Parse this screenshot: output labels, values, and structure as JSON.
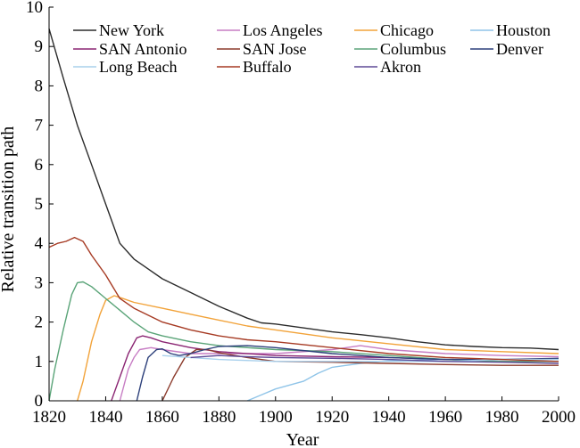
{
  "chart_data": {
    "type": "line",
    "xlabel": "Year",
    "ylabel": "Relative transition path",
    "xlim": [
      1820,
      2000
    ],
    "ylim": [
      0,
      10
    ],
    "x_ticks": [
      1820,
      1840,
      1860,
      1880,
      1900,
      1920,
      1940,
      1960,
      1980,
      2000
    ],
    "y_ticks": [
      0,
      1,
      2,
      3,
      4,
      5,
      6,
      7,
      8,
      9,
      10
    ],
    "grid": false,
    "legend_position": "top",
    "series": [
      {
        "name": "New York",
        "color": "#2b2b2b",
        "points": [
          [
            1820,
            9.45
          ],
          [
            1825,
            8.2
          ],
          [
            1830,
            7.0
          ],
          [
            1835,
            6.0
          ],
          [
            1840,
            5.0
          ],
          [
            1845,
            4.0
          ],
          [
            1850,
            3.6
          ],
          [
            1855,
            3.35
          ],
          [
            1860,
            3.1
          ],
          [
            1870,
            2.75
          ],
          [
            1880,
            2.4
          ],
          [
            1890,
            2.1
          ],
          [
            1895,
            1.98
          ],
          [
            1900,
            1.95
          ],
          [
            1910,
            1.85
          ],
          [
            1920,
            1.75
          ],
          [
            1930,
            1.68
          ],
          [
            1940,
            1.6
          ],
          [
            1950,
            1.5
          ],
          [
            1960,
            1.42
          ],
          [
            1970,
            1.38
          ],
          [
            1980,
            1.35
          ],
          [
            1990,
            1.34
          ],
          [
            2000,
            1.3
          ]
        ]
      },
      {
        "name": "Los Angeles",
        "color": "#c77dc4",
        "points": [
          [
            1845,
            0.0
          ],
          [
            1848,
            0.8
          ],
          [
            1850,
            1.1
          ],
          [
            1852,
            1.3
          ],
          [
            1856,
            1.35
          ],
          [
            1860,
            1.3
          ],
          [
            1870,
            1.2
          ],
          [
            1880,
            1.2
          ],
          [
            1900,
            1.2
          ],
          [
            1920,
            1.3
          ],
          [
            1930,
            1.4
          ],
          [
            1940,
            1.3
          ],
          [
            1960,
            1.2
          ],
          [
            1980,
            1.15
          ],
          [
            2000,
            1.12
          ]
        ]
      },
      {
        "name": "Chicago",
        "color": "#f2a33a",
        "points": [
          [
            1830,
            0.0
          ],
          [
            1832,
            0.5
          ],
          [
            1835,
            1.5
          ],
          [
            1838,
            2.2
          ],
          [
            1840,
            2.55
          ],
          [
            1843,
            2.67
          ],
          [
            1846,
            2.6
          ],
          [
            1850,
            2.5
          ],
          [
            1860,
            2.35
          ],
          [
            1870,
            2.2
          ],
          [
            1880,
            2.05
          ],
          [
            1890,
            1.9
          ],
          [
            1900,
            1.8
          ],
          [
            1920,
            1.6
          ],
          [
            1940,
            1.45
          ],
          [
            1960,
            1.3
          ],
          [
            1980,
            1.25
          ],
          [
            2000,
            1.2
          ]
        ]
      },
      {
        "name": "Houston",
        "color": "#8fc4e8",
        "points": [
          [
            1890,
            0.0
          ],
          [
            1895,
            0.15
          ],
          [
            1900,
            0.3
          ],
          [
            1910,
            0.5
          ],
          [
            1915,
            0.7
          ],
          [
            1920,
            0.85
          ],
          [
            1930,
            0.95
          ],
          [
            1940,
            1.02
          ],
          [
            1960,
            1.05
          ],
          [
            1980,
            1.05
          ],
          [
            2000,
            1.05
          ]
        ]
      },
      {
        "name": "SAN Antonio",
        "color": "#8a2472",
        "points": [
          [
            1842,
            0.0
          ],
          [
            1845,
            0.6
          ],
          [
            1848,
            1.2
          ],
          [
            1851,
            1.6
          ],
          [
            1853,
            1.65
          ],
          [
            1856,
            1.6
          ],
          [
            1860,
            1.5
          ],
          [
            1870,
            1.35
          ],
          [
            1880,
            1.25
          ],
          [
            1900,
            1.15
          ],
          [
            1920,
            1.12
          ],
          [
            1940,
            1.1
          ],
          [
            1960,
            1.05
          ],
          [
            1980,
            1.0
          ],
          [
            2000,
            1.0
          ]
        ]
      },
      {
        "name": "SAN Jose",
        "color": "#8b3a2b",
        "points": [
          [
            1860,
            0.0
          ],
          [
            1864,
            0.6
          ],
          [
            1868,
            1.1
          ],
          [
            1872,
            1.3
          ],
          [
            1876,
            1.3
          ],
          [
            1880,
            1.22
          ],
          [
            1890,
            1.1
          ],
          [
            1900,
            1.0
          ],
          [
            1920,
            0.98
          ],
          [
            1940,
            0.95
          ],
          [
            1960,
            0.92
          ],
          [
            1980,
            0.9
          ],
          [
            2000,
            0.9
          ]
        ]
      },
      {
        "name": "Columbus",
        "color": "#5aa478",
        "points": [
          [
            1820,
            0.0
          ],
          [
            1822,
            0.8
          ],
          [
            1825,
            1.8
          ],
          [
            1828,
            2.7
          ],
          [
            1830,
            3.0
          ],
          [
            1832,
            3.02
          ],
          [
            1835,
            2.9
          ],
          [
            1840,
            2.6
          ],
          [
            1845,
            2.3
          ],
          [
            1850,
            2.0
          ],
          [
            1855,
            1.75
          ],
          [
            1860,
            1.65
          ],
          [
            1870,
            1.5
          ],
          [
            1880,
            1.4
          ],
          [
            1900,
            1.3
          ],
          [
            1920,
            1.25
          ],
          [
            1940,
            1.15
          ],
          [
            1960,
            1.05
          ],
          [
            1980,
            1.0
          ],
          [
            2000,
            1.0
          ]
        ]
      },
      {
        "name": "Denver",
        "color": "#2c3f7a",
        "points": [
          [
            1851,
            0.0
          ],
          [
            1853,
            0.6
          ],
          [
            1855,
            1.1
          ],
          [
            1858,
            1.3
          ],
          [
            1860,
            1.32
          ],
          [
            1863,
            1.2
          ],
          [
            1866,
            1.15
          ],
          [
            1870,
            1.2
          ],
          [
            1875,
            1.3
          ],
          [
            1880,
            1.38
          ],
          [
            1890,
            1.4
          ],
          [
            1900,
            1.35
          ],
          [
            1920,
            1.2
          ],
          [
            1940,
            1.1
          ],
          [
            1960,
            1.05
          ],
          [
            1980,
            1.05
          ],
          [
            2000,
            1.08
          ]
        ]
      },
      {
        "name": "Long Beach",
        "color": "#a8d0ec",
        "points": [
          [
            1860,
            1.15
          ],
          [
            1870,
            1.1
          ],
          [
            1880,
            1.05
          ],
          [
            1900,
            1.0
          ],
          [
            1920,
            1.0
          ],
          [
            1940,
            1.0
          ],
          [
            1960,
            1.0
          ],
          [
            1980,
            1.05
          ],
          [
            2000,
            1.05
          ]
        ]
      },
      {
        "name": "Buffalo",
        "color": "#a63a23",
        "points": [
          [
            1820,
            3.9
          ],
          [
            1823,
            4.0
          ],
          [
            1826,
            4.05
          ],
          [
            1829,
            4.15
          ],
          [
            1832,
            4.05
          ],
          [
            1835,
            3.7
          ],
          [
            1840,
            3.2
          ],
          [
            1845,
            2.6
          ],
          [
            1850,
            2.35
          ],
          [
            1860,
            2.0
          ],
          [
            1870,
            1.8
          ],
          [
            1880,
            1.65
          ],
          [
            1890,
            1.55
          ],
          [
            1900,
            1.5
          ],
          [
            1920,
            1.35
          ],
          [
            1940,
            1.2
          ],
          [
            1960,
            1.1
          ],
          [
            1980,
            1.05
          ],
          [
            2000,
            1.0
          ]
        ]
      },
      {
        "name": "Akron",
        "color": "#5e4a96",
        "points": [
          [
            1870,
            1.1
          ],
          [
            1880,
            1.15
          ],
          [
            1890,
            1.12
          ],
          [
            1900,
            1.1
          ],
          [
            1920,
            1.08
          ],
          [
            1940,
            1.05
          ],
          [
            1960,
            1.0
          ],
          [
            1980,
            0.98
          ],
          [
            2000,
            0.95
          ]
        ]
      }
    ]
  }
}
